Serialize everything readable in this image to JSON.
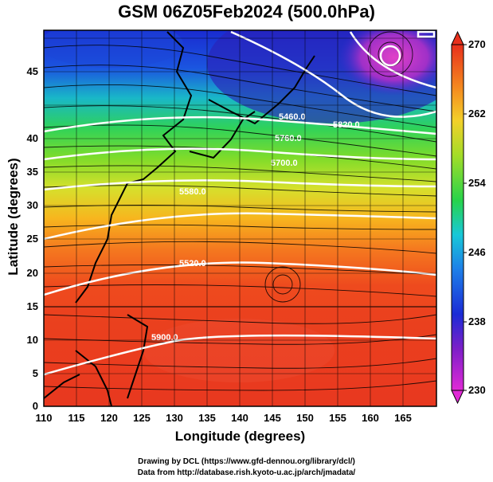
{
  "title": "GSM 06Z05Feb2024 (500.0hPa)",
  "x_axis": {
    "label": "Longitude (degrees)",
    "ticks": [
      "110",
      "115",
      "120",
      "125",
      "130",
      "135",
      "140",
      "145",
      "150",
      "155",
      "160",
      "165"
    ]
  },
  "y_axis": {
    "label": "Latitude  (degrees)",
    "ticks": [
      "0",
      "5",
      "10",
      "15",
      "20",
      "25",
      "30",
      "35",
      "40",
      "45"
    ]
  },
  "colorbar": {
    "ticks": [
      "230",
      "238",
      "246",
      "254",
      "262",
      "270"
    ]
  },
  "contour_labels": [
    "5900.0",
    "5820.0",
    "5760.0",
    "5700.0",
    "5580.0",
    "5520.0",
    "5460.0"
  ],
  "credits": {
    "line1": "Drawing by DCL (https://www.gfd-dennou.org/library/dcl/)",
    "line2": "Data from http://database.rish.kyoto-u.ac.jp/arch/jmadata/"
  },
  "chart_data": {
    "type": "heatmap",
    "title": "GSM 06Z05Feb2024 (500.0hPa)",
    "xlabel": "Longitude (degrees)",
    "ylabel": "Latitude  (degrees)",
    "xlim": [
      110,
      170
    ],
    "ylim": [
      0,
      50
    ],
    "color_scale": {
      "min": 230,
      "max": 270,
      "ticks": [
        230,
        238,
        246,
        254,
        262,
        270
      ]
    },
    "field_description": "temperature shading (K) with geopotential height contours (white) and wind streamlines",
    "geopotential_contours": [
      5460.0,
      5520.0,
      5580.0,
      5700.0,
      5760.0,
      5820.0,
      5900.0
    ]
  }
}
